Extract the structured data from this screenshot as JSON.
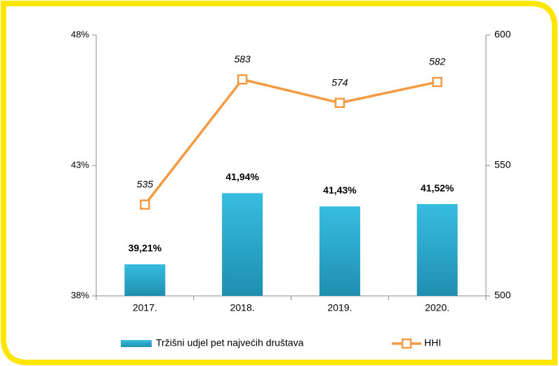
{
  "chart_data": {
    "type": "bar",
    "categories": [
      "2017.",
      "2018.",
      "2019.",
      "2020."
    ],
    "series": [
      {
        "name": "Tržišni udjel pet najvećih društava",
        "type": "bar",
        "color": "#2aaed0",
        "values": [
          39.21,
          41.94,
          41.43,
          41.52
        ],
        "value_labels": [
          "39,21%",
          "41,94%",
          "41,43%",
          "41,52%"
        ]
      },
      {
        "name": "HHI",
        "type": "line",
        "axis": "y2",
        "color": "#f39a43",
        "values": [
          535,
          583,
          574,
          582
        ]
      }
    ],
    "ylim": [
      38,
      48
    ],
    "yticks": [
      {
        "value": 38,
        "label": "38%"
      },
      {
        "value": 43,
        "label": "43%"
      },
      {
        "value": 48,
        "label": "48%"
      }
    ],
    "y2lim": [
      500,
      600
    ],
    "y2ticks": [
      500,
      550,
      600
    ],
    "grid": false,
    "legend": "bottom"
  }
}
